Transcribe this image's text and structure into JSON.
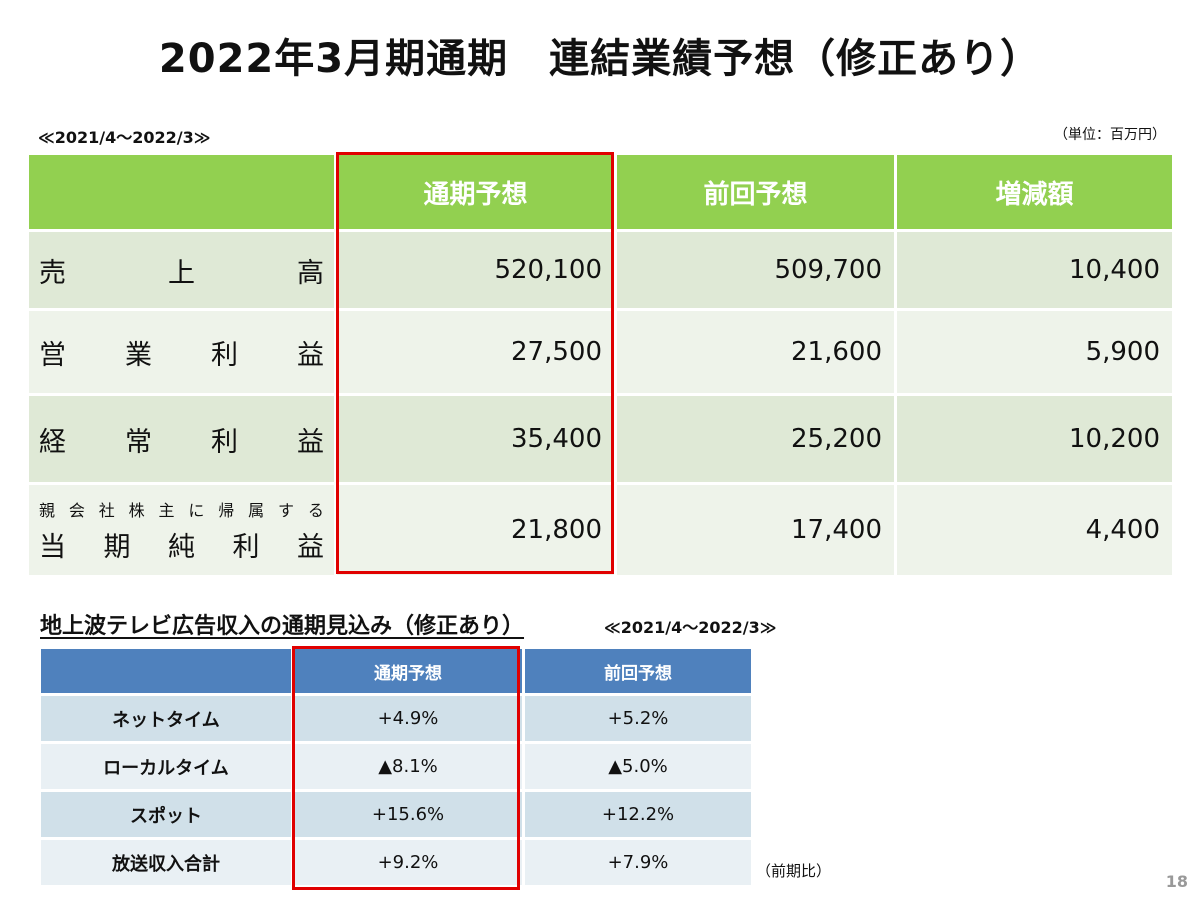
{
  "title": "2022年3月期通期　連結業績予想（修正あり）",
  "period_main": "≪2021/4～2022/3≫",
  "unit": "（単位：百万円）",
  "main_table": {
    "headers": [
      "",
      "通期予想",
      "前回予想",
      "増減額"
    ],
    "rows": [
      {
        "label_chars": [
          "売",
          "上",
          "高"
        ],
        "values": [
          "520,100",
          "509,700",
          "10,400"
        ]
      },
      {
        "label_chars": [
          "営",
          "業",
          "利",
          "益"
        ],
        "values": [
          "27,500",
          "21,600",
          "5,900"
        ]
      },
      {
        "label_chars": [
          "経",
          "常",
          "利",
          "益"
        ],
        "values": [
          "35,400",
          "25,200",
          "10,200"
        ]
      },
      {
        "label_small_chars": [
          "親",
          "会",
          "社",
          "株",
          "主",
          "に",
          "帰",
          "属",
          "す",
          "る"
        ],
        "label_chars": [
          "当",
          "期",
          "純",
          "利",
          "益"
        ],
        "values": [
          "21,800",
          "17,400",
          "4,400"
        ]
      }
    ]
  },
  "sub_title": "地上波テレビ広告収入の通期見込み（修正あり）",
  "period_sub": "≪2021/4～2022/3≫",
  "sub_table": {
    "headers": [
      "",
      "通期予想",
      "前回予想"
    ],
    "rows": [
      {
        "label": "ネットタイム",
        "values": [
          "+4.9%",
          "+5.2%"
        ]
      },
      {
        "label": "ローカルタイム",
        "values": [
          "▲8.1%",
          "▲5.0%"
        ]
      },
      {
        "label": "スポット",
        "values": [
          "+15.6%",
          "+12.2%"
        ]
      },
      {
        "label": "放送収入合計",
        "values": [
          "+9.2%",
          "+7.9%"
        ]
      }
    ]
  },
  "note": "（前期比）",
  "page_number": "18",
  "colors": {
    "main_header": "#92d050",
    "sub_header": "#4f81bd",
    "highlight": "#e00000"
  }
}
